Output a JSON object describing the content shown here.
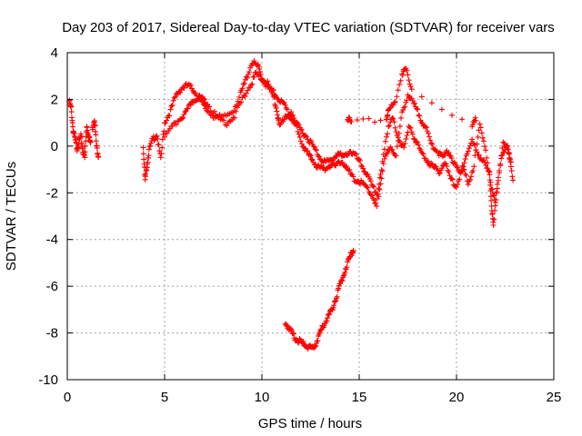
{
  "chart_data": {
    "type": "scatter",
    "title": "Day 203 of 2017, Sidereal Day-to-day VTEC variation (SDTVAR) for receiver vars",
    "xlabel": "GPS time / hours",
    "ylabel": "SDTVAR / TECUs",
    "xlim": [
      0,
      25
    ],
    "ylim": [
      -10,
      4
    ],
    "xticks": [
      0,
      5,
      10,
      15,
      20,
      25
    ],
    "yticks": [
      -10,
      -8,
      -6,
      -4,
      -2,
      0,
      2,
      4
    ],
    "grid": true,
    "marker": "+",
    "series": [
      {
        "name": "SDTVAR",
        "color": "#ff0000",
        "segments": [
          [
            [
              0.1,
              1.9
            ],
            [
              0.2,
              1.6
            ],
            [
              0.3,
              0.7
            ],
            [
              0.4,
              0.3
            ],
            [
              0.5,
              -0.1
            ],
            [
              0.6,
              0.2
            ],
            [
              0.7,
              0.4
            ],
            [
              0.8,
              -0.2
            ],
            [
              0.9,
              -0.5
            ],
            [
              1.0,
              0.9
            ],
            [
              1.1,
              0.4
            ],
            [
              1.2,
              0.1
            ]
          ],
          [
            [
              1.3,
              0.8
            ],
            [
              1.4,
              1.2
            ],
            [
              1.5,
              0.0
            ],
            [
              1.6,
              -0.4
            ]
          ],
          [
            [
              3.9,
              0.0
            ],
            [
              4.0,
              -1.5
            ],
            [
              4.1,
              -0.8
            ],
            [
              4.2,
              -0.2
            ],
            [
              4.4,
              0.3
            ],
            [
              4.6,
              0.5
            ],
            [
              4.8,
              -0.6
            ],
            [
              5.0,
              1.0
            ],
            [
              5.3,
              1.5
            ],
            [
              5.6,
              2.2
            ],
            [
              5.9,
              2.5
            ],
            [
              6.2,
              2.6
            ],
            [
              6.5,
              2.4
            ],
            [
              6.8,
              2.0
            ],
            [
              7.1,
              1.6
            ],
            [
              7.5,
              1.3
            ],
            [
              8.0,
              1.2
            ],
            [
              8.5,
              1.5
            ],
            [
              8.9,
              2.2
            ],
            [
              9.2,
              2.9
            ],
            [
              9.5,
              3.6
            ],
            [
              9.8,
              3.4
            ],
            [
              10.0,
              2.9
            ],
            [
              10.3,
              2.5
            ],
            [
              10.6,
              2.3
            ],
            [
              10.9,
              2.0
            ],
            [
              11.2,
              1.7
            ],
            [
              11.5,
              1.2
            ],
            [
              11.8,
              0.9
            ],
            [
              12.1,
              0.6
            ],
            [
              12.4,
              0.3
            ],
            [
              12.7,
              -0.1
            ],
            [
              13.0,
              -0.5
            ],
            [
              13.3,
              -0.7
            ],
            [
              13.6,
              -0.6
            ],
            [
              13.9,
              -0.3
            ],
            [
              14.2,
              -0.5
            ],
            [
              14.5,
              -0.2
            ],
            [
              14.8,
              -0.4
            ],
            [
              15.1,
              -0.8
            ],
            [
              15.4,
              -1.2
            ],
            [
              15.7,
              -1.8
            ],
            [
              16.0,
              -2.1
            ],
            [
              16.3,
              -0.6
            ],
            [
              16.6,
              0.0
            ],
            [
              16.9,
              -0.4
            ],
            [
              17.2,
              1.4
            ],
            [
              17.5,
              2.2
            ],
            [
              17.8,
              1.8
            ],
            [
              18.1,
              1.3
            ],
            [
              18.4,
              0.8
            ],
            [
              18.7,
              0.1
            ],
            [
              19.0,
              -0.2
            ],
            [
              19.3,
              -0.5
            ],
            [
              19.6,
              -0.2
            ],
            [
              19.9,
              -0.8
            ],
            [
              20.2,
              -1.2
            ],
            [
              20.5,
              -0.4
            ],
            [
              20.8,
              0.2
            ],
            [
              21.1,
              -0.3
            ],
            [
              21.4,
              -0.7
            ],
            [
              21.7,
              -1.2
            ],
            [
              21.8,
              -2.5
            ],
            [
              21.9,
              -3.5
            ],
            [
              22.1,
              -1.6
            ],
            [
              22.4,
              0.1
            ],
            [
              22.7,
              -0.3
            ],
            [
              22.9,
              -1.4
            ]
          ],
          [
            [
              5.0,
              0.4
            ],
            [
              5.4,
              0.8
            ],
            [
              5.8,
              1.2
            ],
            [
              6.1,
              1.4
            ],
            [
              6.4,
              1.9
            ],
            [
              6.7,
              2.1
            ],
            [
              7.0,
              2.0
            ],
            [
              7.3,
              1.7
            ],
            [
              7.7,
              1.2
            ],
            [
              8.2,
              1.0
            ],
            [
              8.6,
              1.3
            ],
            [
              9.0,
              2.0
            ],
            [
              9.4,
              2.6
            ],
            [
              9.7,
              3.1
            ],
            [
              10.0,
              2.9
            ],
            [
              10.3,
              2.7
            ],
            [
              10.6,
              2.1
            ],
            [
              10.8,
              1.4
            ],
            [
              10.9,
              0.8
            ],
            [
              11.2,
              1.3
            ],
            [
              11.5,
              1.4
            ],
            [
              11.8,
              0.8
            ],
            [
              12.1,
              0.1
            ],
            [
              12.4,
              -0.4
            ],
            [
              12.6,
              -0.6
            ],
            [
              12.9,
              -0.9
            ],
            [
              13.2,
              -1.0
            ],
            [
              13.5,
              -0.8
            ],
            [
              13.8,
              -0.9
            ],
            [
              14.1,
              -0.6
            ],
            [
              14.4,
              -1.0
            ],
            [
              14.7,
              -1.4
            ],
            [
              15.0,
              -1.5
            ],
            [
              15.3,
              -1.7
            ],
            [
              15.6,
              -2.0
            ],
            [
              15.9,
              -2.6
            ],
            [
              16.1,
              -1.2
            ],
            [
              16.4,
              0.5
            ],
            [
              16.7,
              1.2
            ],
            [
              17.0,
              0.4
            ],
            [
              17.3,
              -0.1
            ],
            [
              17.6,
              0.9
            ],
            [
              17.9,
              0.2
            ],
            [
              18.2,
              -0.3
            ],
            [
              18.5,
              -0.6
            ],
            [
              18.8,
              -0.9
            ],
            [
              19.1,
              -1.1
            ],
            [
              19.4,
              -0.7
            ],
            [
              19.7,
              -1.4
            ],
            [
              20.0,
              -1.7
            ],
            [
              20.3,
              -0.9
            ],
            [
              20.6,
              -1.6
            ],
            [
              20.9,
              -0.8
            ],
            [
              21.2,
              0.9
            ],
            [
              21.5,
              -0.1
            ],
            [
              21.8,
              -1.9
            ],
            [
              22.0,
              -2.3
            ],
            [
              22.3,
              -0.5
            ],
            [
              22.6,
              0.0
            ],
            [
              22.8,
              -0.6
            ]
          ],
          [
            [
              14.4,
              1.2
            ],
            [
              14.6,
              1.0
            ],
            [
              16.4,
              1.2
            ],
            [
              16.5,
              1.5
            ],
            [
              16.8,
              1.8
            ],
            [
              17.2,
              3.1
            ],
            [
              17.4,
              3.3
            ],
            [
              17.7,
              2.5
            ],
            [
              20.8,
              0.8
            ],
            [
              21.0,
              1.2
            ]
          ],
          [
            [
              11.2,
              -7.5
            ],
            [
              11.4,
              -7.8
            ],
            [
              11.6,
              -8.1
            ],
            [
              11.8,
              -8.3
            ],
            [
              12.0,
              -8.4
            ],
            [
              12.2,
              -8.5
            ],
            [
              12.4,
              -8.6
            ],
            [
              12.6,
              -8.7
            ],
            [
              12.8,
              -8.4
            ],
            [
              13.0,
              -8.0
            ],
            [
              13.2,
              -7.6
            ],
            [
              13.4,
              -7.3
            ],
            [
              13.6,
              -7.0
            ],
            [
              13.8,
              -6.5
            ],
            [
              14.0,
              -6.0
            ],
            [
              14.2,
              -5.5
            ],
            [
              14.4,
              -5.0
            ],
            [
              14.6,
              -4.6
            ],
            [
              14.7,
              -4.4
            ]
          ]
        ]
      }
    ]
  }
}
